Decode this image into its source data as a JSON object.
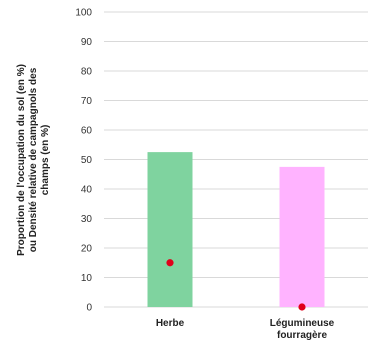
{
  "chart_data": {
    "type": "bar",
    "categories": [
      [
        "Herbe"
      ],
      [
        "Légumineuse",
        "fourragère"
      ]
    ],
    "ylabel": [
      "Proportion de l'occupation du sol (en %)",
      "ou Densité relative de campagnols des",
      "champs (en %)"
    ],
    "ylim": [
      0,
      100
    ],
    "yticks": [
      0,
      10,
      20,
      30,
      40,
      50,
      60,
      70,
      80,
      90,
      100
    ],
    "grid": true,
    "bar_values": [
      52.5,
      47.5
    ],
    "point_values": [
      15,
      0
    ],
    "colors": {
      "bars": [
        "#7fd39f",
        "#ffb3ff"
      ],
      "points": "#e0001a"
    }
  }
}
